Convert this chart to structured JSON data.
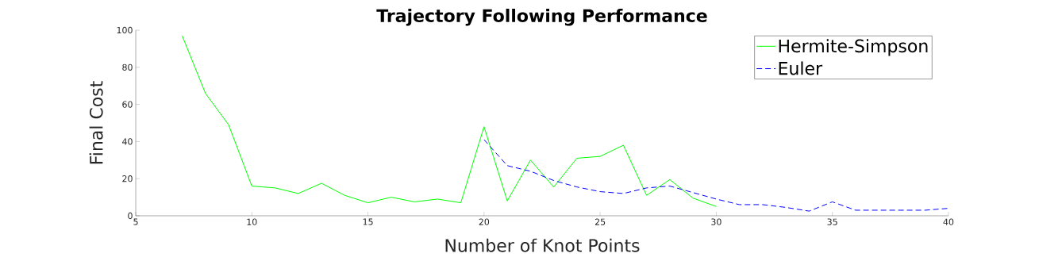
{
  "chart_data": {
    "type": "line",
    "title": "Trajectory Following Performance",
    "xlabel": "Number of Knot Points",
    "ylabel": "Final Cost",
    "xlim": [
      5,
      40
    ],
    "ylim": [
      0,
      100
    ],
    "xticks": [
      5,
      10,
      15,
      20,
      25,
      30,
      35,
      40
    ],
    "yticks": [
      0,
      20,
      40,
      60,
      80,
      100
    ],
    "grid": false,
    "legend": "top right",
    "marker": "none",
    "series": [
      {
        "name": "Hermite-Simpson",
        "color": "#00ff00",
        "line_style": "solid",
        "x": [
          7,
          8,
          9,
          10,
          11,
          12,
          13,
          14,
          15,
          16,
          17,
          18,
          19,
          20,
          21,
          22,
          23,
          24,
          25,
          26,
          27,
          28,
          29,
          30
        ],
        "values": [
          97,
          66,
          49,
          16,
          15,
          12,
          17.5,
          11,
          7,
          10,
          7.5,
          9,
          7,
          48,
          8,
          30,
          15.5,
          31,
          32,
          38,
          11,
          19.5,
          9.5,
          5
        ]
      },
      {
        "name": "Euler",
        "color": "#0000ff",
        "line_style": "dashed",
        "x": [
          20,
          21,
          22,
          23,
          24,
          25,
          26,
          27,
          28,
          29,
          30,
          31,
          32,
          33,
          34,
          35,
          36,
          37,
          38,
          39,
          40
        ],
        "values": [
          41,
          27,
          24,
          19,
          15.5,
          13,
          12,
          15,
          16,
          12.5,
          9,
          6,
          6,
          4.5,
          2.5,
          7.5,
          3,
          3,
          3,
          3,
          4
        ]
      }
    ]
  }
}
